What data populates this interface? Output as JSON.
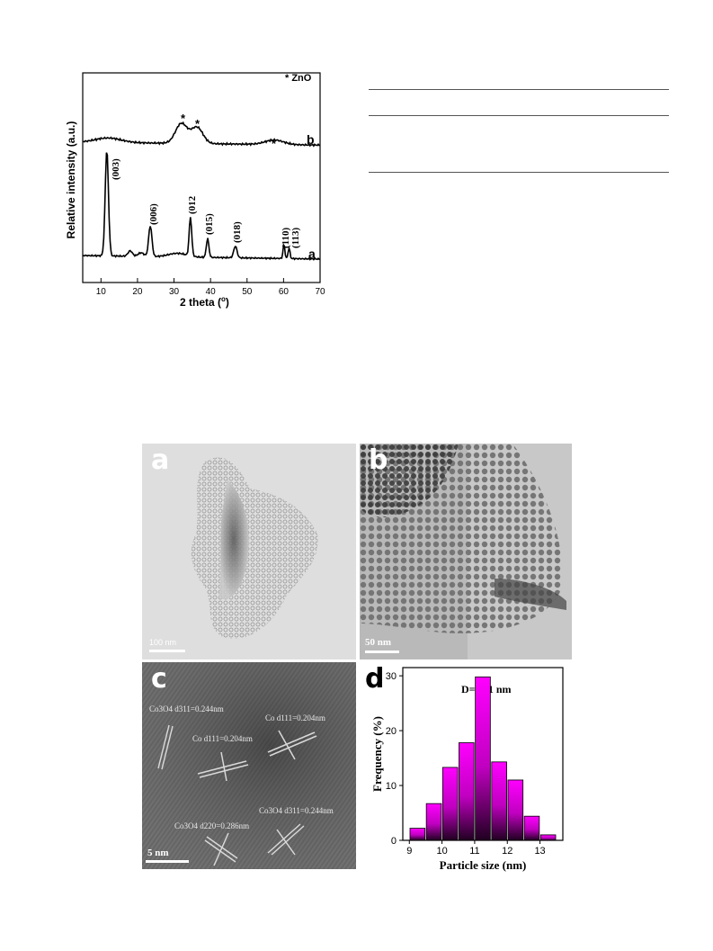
{
  "xrd": {
    "legend": "* ZnO",
    "ylabel": "Relative intensity (a.u.)",
    "xlabel": "2 theta (",
    "xlabel_degree": "o",
    "xlabel_close": ")",
    "curve_a_label": "a",
    "curve_b_label": "b",
    "peak_labels": [
      "(003)",
      "(006)",
      "(012",
      "(015)",
      "(018)",
      "(110)",
      "(113)"
    ],
    "star": "*"
  },
  "chart_data": {
    "type": "line",
    "xlim": [
      5,
      70
    ],
    "x_ticks": [
      10,
      20,
      30,
      40,
      50,
      60,
      70
    ],
    "xlabel": "2 theta (°)",
    "ylabel": "Relative intensity (a.u.)",
    "series": [
      {
        "name": "a",
        "peaks_2theta": [
          11.6,
          23.5,
          34.5,
          39.2,
          46.8,
          60.1,
          61.5
        ]
      },
      {
        "name": "b",
        "peaks_2theta": [
          32.0,
          36.3,
          57.5
        ]
      }
    ]
  },
  "tem": {
    "a": {
      "letter": "a",
      "scale": "100 nm"
    },
    "b": {
      "letter": "b",
      "scale": "50 nm"
    },
    "c": {
      "letter": "c",
      "scale": "5 nm",
      "labels": [
        "Co3O4 d311=0.244nm",
        "Co d111=0.204nm",
        "Co d111=0.204nm",
        "Co3O4 d311=0.244nm",
        "Co3O4 d220=0.286nm"
      ]
    }
  },
  "histogram": {
    "letter": "d",
    "annotation": "D=11.1 nm",
    "xlabel": "Particle size (nm)",
    "ylabel": "Frequency (%)",
    "x_ticks": [
      "9",
      "10",
      "11",
      "12",
      "13"
    ],
    "y_ticks": [
      "0",
      "10",
      "20",
      "30"
    ],
    "bin_centers": [
      9.25,
      9.75,
      10.25,
      10.75,
      11.25,
      11.75,
      12.25,
      12.75,
      13.25
    ],
    "frequencies": [
      2.2,
      6.7,
      13.3,
      17.8,
      29.8,
      14.3,
      11.0,
      4.4,
      1.0
    ],
    "bar_color": "#ff00ff"
  }
}
